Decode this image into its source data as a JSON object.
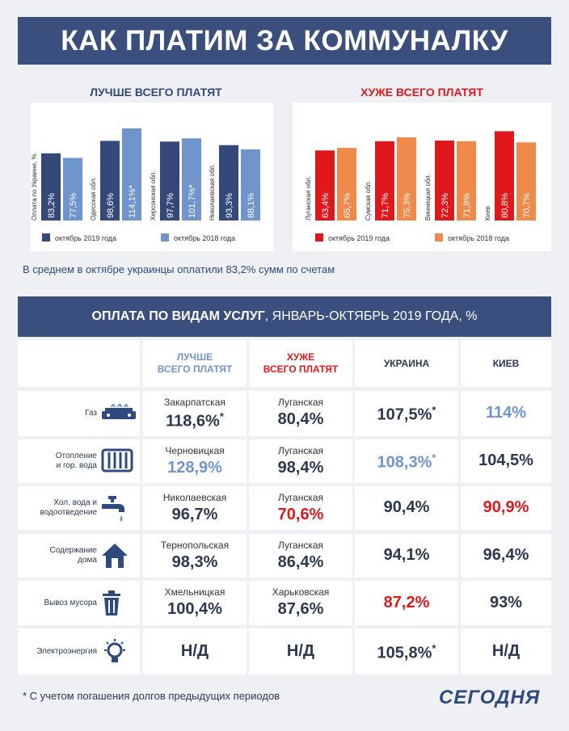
{
  "title": "КАК ПЛАТИМ ЗА КОММУНАЛКУ",
  "average_note": "В среднем в октябре украинцы оплатили 83,2% сумм по счетам",
  "chart_data": [
    {
      "type": "bar",
      "title": "ЛУЧШЕ ВСЕГО ПЛАТЯТ",
      "categories": [
        "Оплата по Украине, %",
        "Одесская обл.",
        "Херсонская обл.",
        "Николаевская обл."
      ],
      "series": [
        {
          "name": "октябрь 2019 года",
          "values": [
            83.2,
            98.6,
            97.7,
            93.3
          ],
          "labels": [
            "83,2%",
            "98,6%",
            "97,7%",
            "93,3%"
          ]
        },
        {
          "name": "октябрь 2018 года",
          "values": [
            77.5,
            114.1,
            101.7,
            88.1
          ],
          "labels": [
            "77,5%",
            "114,1%*",
            "101,7%*",
            "88,1%"
          ]
        }
      ],
      "colors": [
        "#34487a",
        "#6f95cc"
      ],
      "ylim": [
        0,
        130
      ],
      "legend": "bottom"
    },
    {
      "type": "bar",
      "title": "ХУЖЕ ВСЕГО ПЛАТЯТ",
      "categories": [
        "Луганская обл.",
        "Сумская обл.",
        "Винницкая обл.",
        "Киев"
      ],
      "series": [
        {
          "name": "октябрь 2019 года",
          "values": [
            63.4,
            71.7,
            72.3,
            80.8
          ],
          "labels": [
            "63,4%",
            "71,7%",
            "72,3%",
            "80,8%"
          ]
        },
        {
          "name": "октябрь 2018 года",
          "values": [
            65.7,
            75.3,
            71.8,
            70.7
          ],
          "labels": [
            "65,7%",
            "75,3%",
            "71,8%",
            "70,7%"
          ]
        }
      ],
      "colors": [
        "#e0181c",
        "#f08a4b"
      ],
      "ylim": [
        0,
        95
      ],
      "legend": "bottom"
    }
  ],
  "section": {
    "title_bold": "ОПЛАТА ПО ВИДАМ УСЛУГ",
    "title_rest": ", ЯНВАРЬ-ОКТЯБРЬ 2019 ГОДА, %"
  },
  "table": {
    "headers": [
      {
        "lines": [
          "ЛУЧШЕ",
          "ВСЕГО ПЛАТЯТ"
        ],
        "color": "#6f95cc"
      },
      {
        "lines": [
          "ХУЖЕ",
          "ВСЕГО ПЛАТЯТ"
        ],
        "color": "#e0181c"
      },
      {
        "lines": [
          "УКРАИНА",
          ""
        ],
        "color": "#2c3850"
      },
      {
        "lines": [
          "КИЕВ",
          ""
        ],
        "color": "#2c3850"
      }
    ],
    "rows": [
      {
        "service": [
          "Газ"
        ],
        "icon": "gas-stove-icon",
        "best_region": "Закарпатская",
        "best": "118,6%",
        "best_star": "*",
        "best_color": "#2c3850",
        "worst_region": "Луганская",
        "worst": "80,4%",
        "worst_color": "#2c3850",
        "ukraine": "107,5%",
        "ukraine_star": "*",
        "ukraine_color": "#2c3850",
        "kyiv": "114%",
        "kyiv_color": "#6f95cc"
      },
      {
        "service": [
          "Отопление",
          "и гор. вода"
        ],
        "icon": "radiator-icon",
        "best_region": "Черновицкая",
        "best": "128,9%",
        "best_star": "",
        "best_color": "#6f95cc",
        "worst_region": "Луганская",
        "worst": "98,4%",
        "worst_color": "#2c3850",
        "ukraine": "108,3%",
        "ukraine_star": "*",
        "ukraine_color": "#6f95cc",
        "kyiv": "104,5%",
        "kyiv_color": "#2c3850"
      },
      {
        "service": [
          "Хол. вода и",
          "водоотведение"
        ],
        "icon": "water-tap-icon",
        "best_region": "Николаевская",
        "best": "96,7%",
        "best_star": "",
        "best_color": "#2c3850",
        "worst_region": "Луганская",
        "worst": "70,6%",
        "worst_color": "#e0181c",
        "ukraine": "90,4%",
        "ukraine_star": "",
        "ukraine_color": "#2c3850",
        "kyiv": "90,9%",
        "kyiv_color": "#e0181c"
      },
      {
        "service": [
          "Содержание",
          "дома"
        ],
        "icon": "house-icon",
        "best_region": "Тернопольская",
        "best": "98,3%",
        "best_star": "",
        "best_color": "#2c3850",
        "worst_region": "Луганская",
        "worst": "86,4%",
        "worst_color": "#2c3850",
        "ukraine": "94,1%",
        "ukraine_star": "",
        "ukraine_color": "#2c3850",
        "kyiv": "96,4%",
        "kyiv_color": "#2c3850"
      },
      {
        "service": [
          "Вывоз мусора"
        ],
        "icon": "trash-can-icon",
        "best_region": "Хмельницкая",
        "best": "100,4%",
        "best_star": "",
        "best_color": "#2c3850",
        "worst_region": "Харьковская",
        "worst": "87,6%",
        "worst_color": "#2c3850",
        "ukraine": "87,2%",
        "ukraine_star": "",
        "ukraine_color": "#e0181c",
        "kyiv": "93%",
        "kyiv_color": "#2c3850"
      },
      {
        "service": [
          "Электроэнергия"
        ],
        "icon": "light-bulb-icon",
        "best_region": "",
        "best": "Н/Д",
        "best_star": "",
        "best_color": "#2c3850",
        "worst_region": "",
        "worst": "Н/Д",
        "worst_color": "#2c3850",
        "ukraine": "105,8%",
        "ukraine_star": "*",
        "ukraine_color": "#2c3850",
        "kyiv": "Н/Д",
        "kyiv_color": "#2c3850"
      }
    ]
  },
  "footnote": "* С учетом погашения долгов предыдущих периодов",
  "logo": "СЕГОДНЯ"
}
